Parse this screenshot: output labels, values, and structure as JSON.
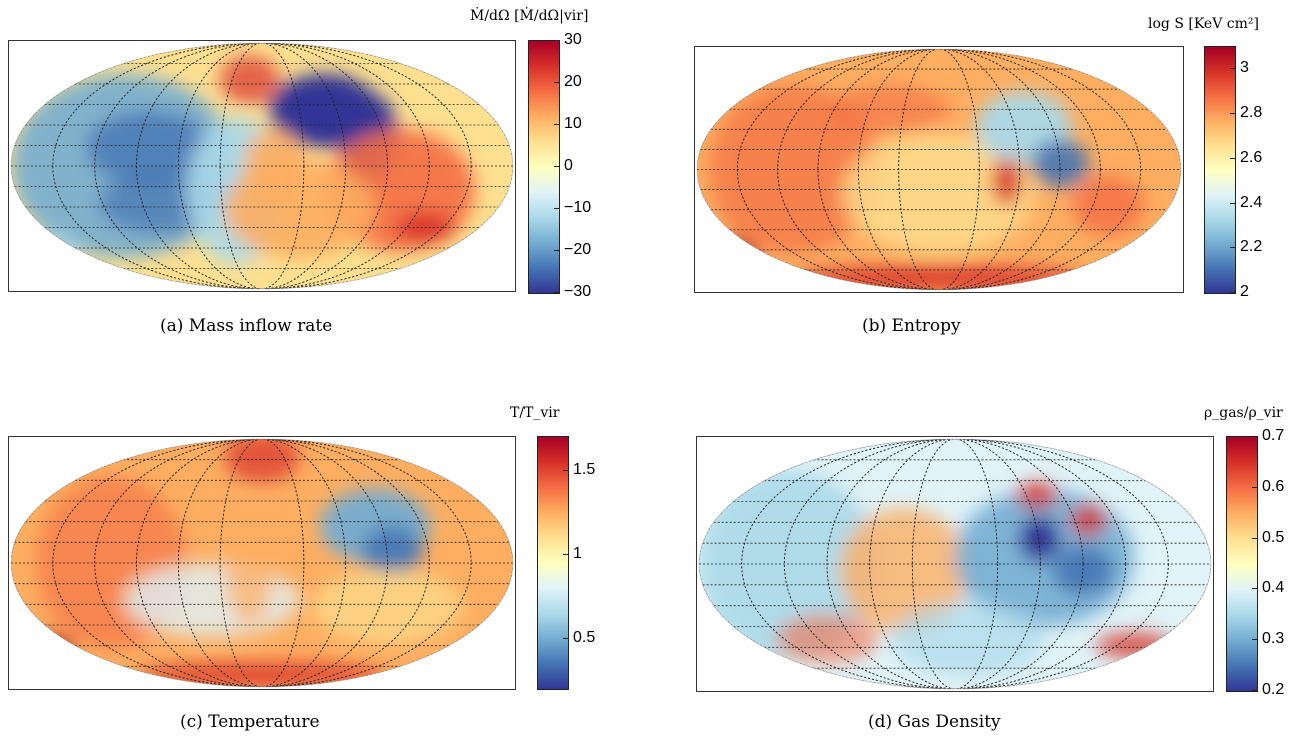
{
  "chart_data": [
    {
      "type": "heatmap",
      "caption": "(a) Mass inflow rate",
      "colorbar_label": "Ṁ/dΩ [Ṁ/dΩ|vir]",
      "colorbar_ticks": [
        "30",
        "20",
        "10",
        "0",
        "−10",
        "−20",
        "−30"
      ],
      "colorbar_range": [
        -30,
        30
      ],
      "colormap": [
        "#a50026",
        "#d73027",
        "#f46d43",
        "#fdae61",
        "#fee090",
        "#ffffbf",
        "#e0f3f8",
        "#abd9e9",
        "#74add1",
        "#4575b4",
        "#313695"
      ],
      "projection": "Mollweide"
    },
    {
      "type": "heatmap",
      "caption": "(b) Entropy",
      "colorbar_label": "log S [KeV cm²]",
      "colorbar_ticks": [
        "3",
        "2.8",
        "2.6",
        "2.4",
        "2.2",
        "2"
      ],
      "colorbar_range": [
        2,
        3.1
      ],
      "projection": "Mollweide"
    },
    {
      "type": "heatmap",
      "caption": "(c) Temperature",
      "colorbar_label": "T/T_vir",
      "colorbar_ticks": [
        "1.5",
        "1",
        "0.5"
      ],
      "colorbar_range": [
        0.2,
        1.7
      ],
      "projection": "Mollweide"
    },
    {
      "type": "heatmap",
      "caption": "(d) Gas Density",
      "colorbar_label": "ρ_gas/ρ_vir",
      "colorbar_ticks": [
        "0.7",
        "0.6",
        "0.5",
        "0.4",
        "0.3",
        "0.2"
      ],
      "colorbar_range": [
        0.2,
        0.7
      ],
      "projection": "Mollweide"
    }
  ]
}
